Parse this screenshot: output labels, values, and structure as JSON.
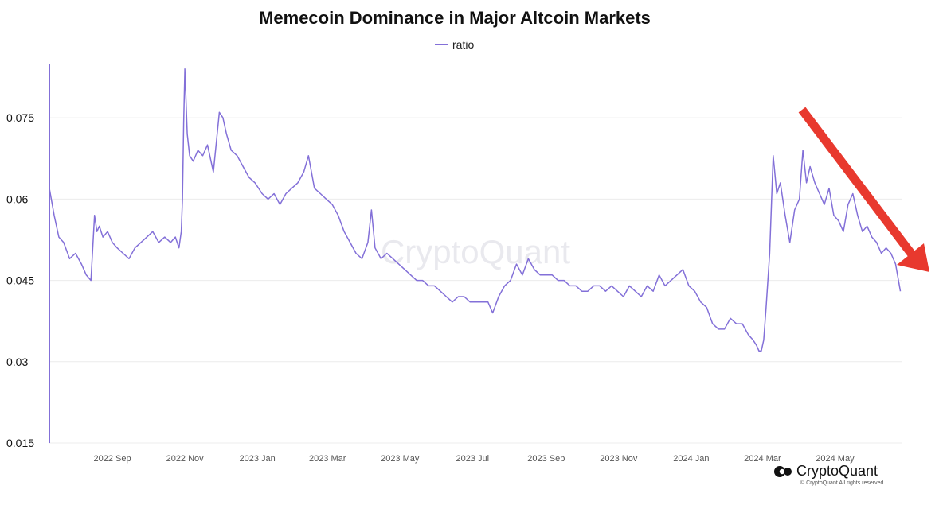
{
  "chart_data": {
    "type": "line",
    "title": "Memecoin Dominance in Major Altcoin Markets",
    "xlabel": "",
    "ylabel": "",
    "legend": "top-center",
    "grid": true,
    "ylim": [
      0.015,
      0.085
    ],
    "y_ticks": [
      "0.015",
      "0.03",
      "0.045",
      "0.06",
      "0.075"
    ],
    "y_tick_values": [
      0.015,
      0.03,
      0.045,
      0.06,
      0.075
    ],
    "x_ticks": [
      "2022 Sep",
      "2022 Nov",
      "2023 Jan",
      "2023 Mar",
      "2023 May",
      "2023 Jul",
      "2023 Sep",
      "2023 Nov",
      "2024 Jan",
      "2024 Mar",
      "2024 May"
    ],
    "x_tick_dates": [
      "2022-09-01",
      "2022-11-01",
      "2023-01-01",
      "2023-03-01",
      "2023-05-01",
      "2023-07-01",
      "2023-09-01",
      "2023-11-01",
      "2024-01-01",
      "2024-03-01",
      "2024-05-01"
    ],
    "xlim": [
      "2022-07-10",
      "2024-06-26"
    ],
    "series": [
      {
        "name": "ratio",
        "color": "#8370d8",
        "x": [
          "2022-07-10",
          "2022-07-14",
          "2022-07-18",
          "2022-07-22",
          "2022-07-27",
          "2022-08-01",
          "2022-08-06",
          "2022-08-10",
          "2022-08-14",
          "2022-08-17",
          "2022-08-19",
          "2022-08-21",
          "2022-08-24",
          "2022-08-28",
          "2022-09-01",
          "2022-09-05",
          "2022-09-10",
          "2022-09-15",
          "2022-09-20",
          "2022-09-25",
          "2022-09-30",
          "2022-10-05",
          "2022-10-10",
          "2022-10-15",
          "2022-10-20",
          "2022-10-24",
          "2022-10-27",
          "2022-10-29",
          "2022-10-30",
          "2022-10-31",
          "2022-11-01",
          "2022-11-03",
          "2022-11-05",
          "2022-11-08",
          "2022-11-12",
          "2022-11-16",
          "2022-11-20",
          "2022-11-25",
          "2022-11-30",
          "2022-12-03",
          "2022-12-06",
          "2022-12-10",
          "2022-12-15",
          "2022-12-20",
          "2022-12-25",
          "2022-12-30",
          "2023-01-05",
          "2023-01-10",
          "2023-01-15",
          "2023-01-20",
          "2023-01-25",
          "2023-01-30",
          "2023-02-04",
          "2023-02-09",
          "2023-02-13",
          "2023-02-18",
          "2023-02-23",
          "2023-02-28",
          "2023-03-05",
          "2023-03-10",
          "2023-03-15",
          "2023-03-20",
          "2023-03-25",
          "2023-03-30",
          "2023-04-04",
          "2023-04-07",
          "2023-04-10",
          "2023-04-15",
          "2023-04-20",
          "2023-04-25",
          "2023-04-30",
          "2023-05-05",
          "2023-05-10",
          "2023-05-15",
          "2023-05-20",
          "2023-05-25",
          "2023-05-30",
          "2023-06-04",
          "2023-06-09",
          "2023-06-14",
          "2023-06-19",
          "2023-06-24",
          "2023-06-29",
          "2023-07-04",
          "2023-07-09",
          "2023-07-14",
          "2023-07-18",
          "2023-07-23",
          "2023-07-28",
          "2023-08-02",
          "2023-08-07",
          "2023-08-12",
          "2023-08-17",
          "2023-08-22",
          "2023-08-27",
          "2023-09-01",
          "2023-09-06",
          "2023-09-11",
          "2023-09-16",
          "2023-09-21",
          "2023-09-26",
          "2023-10-01",
          "2023-10-06",
          "2023-10-11",
          "2023-10-16",
          "2023-10-21",
          "2023-10-26",
          "2023-10-31",
          "2023-11-05",
          "2023-11-10",
          "2023-11-15",
          "2023-11-20",
          "2023-11-25",
          "2023-11-30",
          "2023-12-05",
          "2023-12-10",
          "2023-12-15",
          "2023-12-20",
          "2023-12-25",
          "2023-12-30",
          "2024-01-04",
          "2024-01-09",
          "2024-01-14",
          "2024-01-19",
          "2024-01-24",
          "2024-01-29",
          "2024-02-03",
          "2024-02-08",
          "2024-02-13",
          "2024-02-18",
          "2024-02-22",
          "2024-02-25",
          "2024-02-27",
          "2024-02-29",
          "2024-03-02",
          "2024-03-04",
          "2024-03-07",
          "2024-03-10",
          "2024-03-13",
          "2024-03-16",
          "2024-03-20",
          "2024-03-24",
          "2024-03-28",
          "2024-04-01",
          "2024-04-04",
          "2024-04-07",
          "2024-04-10",
          "2024-04-14",
          "2024-04-18",
          "2024-04-22",
          "2024-04-26",
          "2024-04-30",
          "2024-05-04",
          "2024-05-08",
          "2024-05-12",
          "2024-05-16",
          "2024-05-20",
          "2024-05-24",
          "2024-05-28",
          "2024-06-01",
          "2024-06-05",
          "2024-06-09",
          "2024-06-13",
          "2024-06-17",
          "2024-06-21",
          "2024-06-25"
        ],
        "y": [
          0.062,
          0.057,
          0.053,
          0.052,
          0.049,
          0.05,
          0.048,
          0.046,
          0.045,
          0.057,
          0.054,
          0.055,
          0.053,
          0.054,
          0.052,
          0.051,
          0.05,
          0.049,
          0.051,
          0.052,
          0.053,
          0.054,
          0.052,
          0.053,
          0.052,
          0.053,
          0.051,
          0.054,
          0.06,
          0.074,
          0.084,
          0.072,
          0.068,
          0.067,
          0.069,
          0.068,
          0.07,
          0.065,
          0.076,
          0.075,
          0.072,
          0.069,
          0.068,
          0.066,
          0.064,
          0.063,
          0.061,
          0.06,
          0.061,
          0.059,
          0.061,
          0.062,
          0.063,
          0.065,
          0.068,
          0.062,
          0.061,
          0.06,
          0.059,
          0.057,
          0.054,
          0.052,
          0.05,
          0.049,
          0.052,
          0.058,
          0.051,
          0.049,
          0.05,
          0.049,
          0.048,
          0.047,
          0.046,
          0.045,
          0.045,
          0.044,
          0.044,
          0.043,
          0.042,
          0.041,
          0.042,
          0.042,
          0.041,
          0.041,
          0.041,
          0.041,
          0.039,
          0.042,
          0.044,
          0.045,
          0.048,
          0.046,
          0.049,
          0.047,
          0.046,
          0.046,
          0.046,
          0.045,
          0.045,
          0.044,
          0.044,
          0.043,
          0.043,
          0.044,
          0.044,
          0.043,
          0.044,
          0.043,
          0.042,
          0.044,
          0.043,
          0.042,
          0.044,
          0.043,
          0.046,
          0.044,
          0.045,
          0.046,
          0.047,
          0.044,
          0.043,
          0.041,
          0.04,
          0.037,
          0.036,
          0.036,
          0.038,
          0.037,
          0.037,
          0.035,
          0.034,
          0.033,
          0.032,
          0.032,
          0.034,
          0.04,
          0.05,
          0.068,
          0.061,
          0.063,
          0.057,
          0.052,
          0.058,
          0.06,
          0.069,
          0.063,
          0.066,
          0.063,
          0.061,
          0.059,
          0.062,
          0.057,
          0.056,
          0.054,
          0.059,
          0.061,
          0.057,
          0.054,
          0.055,
          0.053,
          0.052,
          0.05,
          0.051,
          0.05,
          0.048,
          0.043
        ]
      }
    ]
  },
  "legend_label": "ratio",
  "watermark": "CryptoQuant",
  "brand_name": "CryptoQuant",
  "copyright": "© CryptoQuant All rights reserved."
}
